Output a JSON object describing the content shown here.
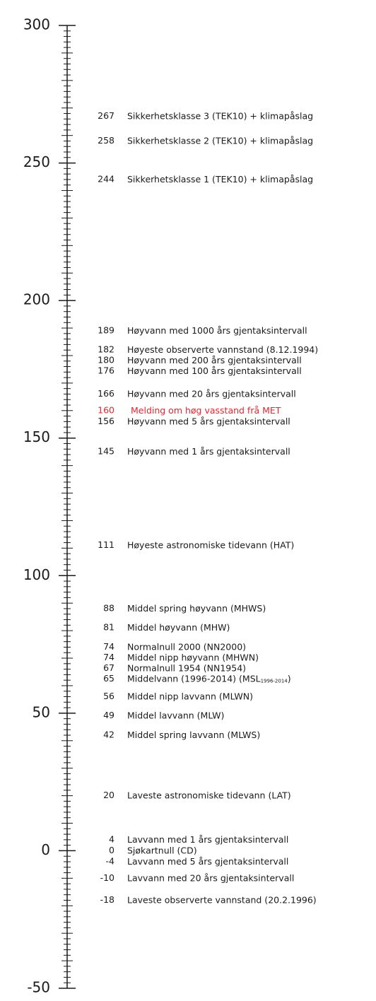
{
  "chart_data": {
    "type": "level-scale",
    "ylim": [
      -50,
      300
    ],
    "yticks": [
      -50,
      0,
      50,
      100,
      150,
      200,
      250,
      300
    ],
    "text_color": "#1a1a1a",
    "levels": [
      {
        "value": 267,
        "label": "Sikkerhetsklasse 3 (TEK10) + klimapåslag"
      },
      {
        "value": 258,
        "label": "Sikkerhetsklasse 2 (TEK10) + klimapåslag"
      },
      {
        "value": 244,
        "label": "Sikkerhetsklasse 1 (TEK10) + klimapåslag"
      },
      {
        "value": 189,
        "label": "Høyvann med 1000 års gjentaksintervall"
      },
      {
        "value": 182,
        "label": "Høyeste observerte vannstand (8.12.1994)"
      },
      {
        "value": 180,
        "label": "Høyvann med 200 års gjentaksintervall"
      },
      {
        "value": 176,
        "label": "Høyvann med 100 års gjentaksintervall"
      },
      {
        "value": 166,
        "label": "Høyvann med 20 års gjentaksintervall"
      },
      {
        "value": 160,
        "label": "Melding om høg vasstand frå MET",
        "color": "#e0262f"
      },
      {
        "value": 156,
        "label": "Høyvann med 5 års gjentaksintervall"
      },
      {
        "value": 145,
        "label": "Høyvann med 1 års gjentaksintervall"
      },
      {
        "value": 111,
        "label": "Høyeste astronomiske tidevann (HAT)"
      },
      {
        "value": 88,
        "label": "Middel spring høyvann (MHWS)"
      },
      {
        "value": 81,
        "label": "Middel høyvann (MHW)"
      },
      {
        "value": 74,
        "label": "Normalnull 2000 (NN2000)"
      },
      {
        "value": 74,
        "label": "Middel nipp høyvann (MHWN)"
      },
      {
        "value": 67,
        "label": "Normalnull 1954 (NN1954)"
      },
      {
        "value": 65,
        "label": "Middelvann (1996-2014) (MSL",
        "subscript": "1996-2014",
        "label_end": ")"
      },
      {
        "value": 56,
        "label": "Middel nipp lavvann (MLWN)"
      },
      {
        "value": 49,
        "label": "Middel lavvann (MLW)"
      },
      {
        "value": 42,
        "label": "Middel spring lavvann (MLWS)"
      },
      {
        "value": 20,
        "label": "Laveste astronomiske tidevann (LAT)"
      },
      {
        "value": 4,
        "label": "Lavvann med 1 års gjentaksintervall"
      },
      {
        "value": 0,
        "label": "Sjøkartnull (CD)"
      },
      {
        "value": -4,
        "label": "Lavvann med 5 års gjentaksintervall"
      },
      {
        "value": -10,
        "label": "Lavvann med 20 års gjentaksintervall"
      },
      {
        "value": -18,
        "label": "Laveste observerte vannstand (20.2.1996)"
      }
    ]
  }
}
